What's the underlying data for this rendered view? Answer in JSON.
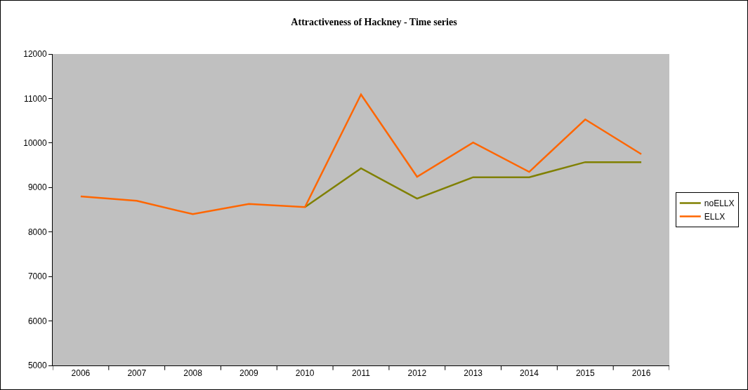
{
  "chart_data": {
    "type": "line",
    "title": "Attractiveness of Hackney - Time series",
    "categories": [
      "2006",
      "2007",
      "2008",
      "2009",
      "2010",
      "2011",
      "2012",
      "2013",
      "2014",
      "2015",
      "2016"
    ],
    "series": [
      {
        "name": "noELLX",
        "color": "#808000",
        "values": [
          null,
          null,
          null,
          null,
          8560,
          9430,
          8750,
          9230,
          9230,
          9570,
          9570
        ]
      },
      {
        "name": "ELLX",
        "color": "#ff6600",
        "values": [
          8800,
          8700,
          8400,
          8630,
          8560,
          11090,
          9240,
          10010,
          9350,
          10530,
          9750
        ]
      }
    ],
    "ylim": [
      5000,
      12000
    ],
    "yticks": [
      5000,
      6000,
      7000,
      8000,
      9000,
      10000,
      11000,
      12000
    ],
    "grid": false,
    "legend": "right",
    "marker": "none",
    "line_style": "solid"
  }
}
